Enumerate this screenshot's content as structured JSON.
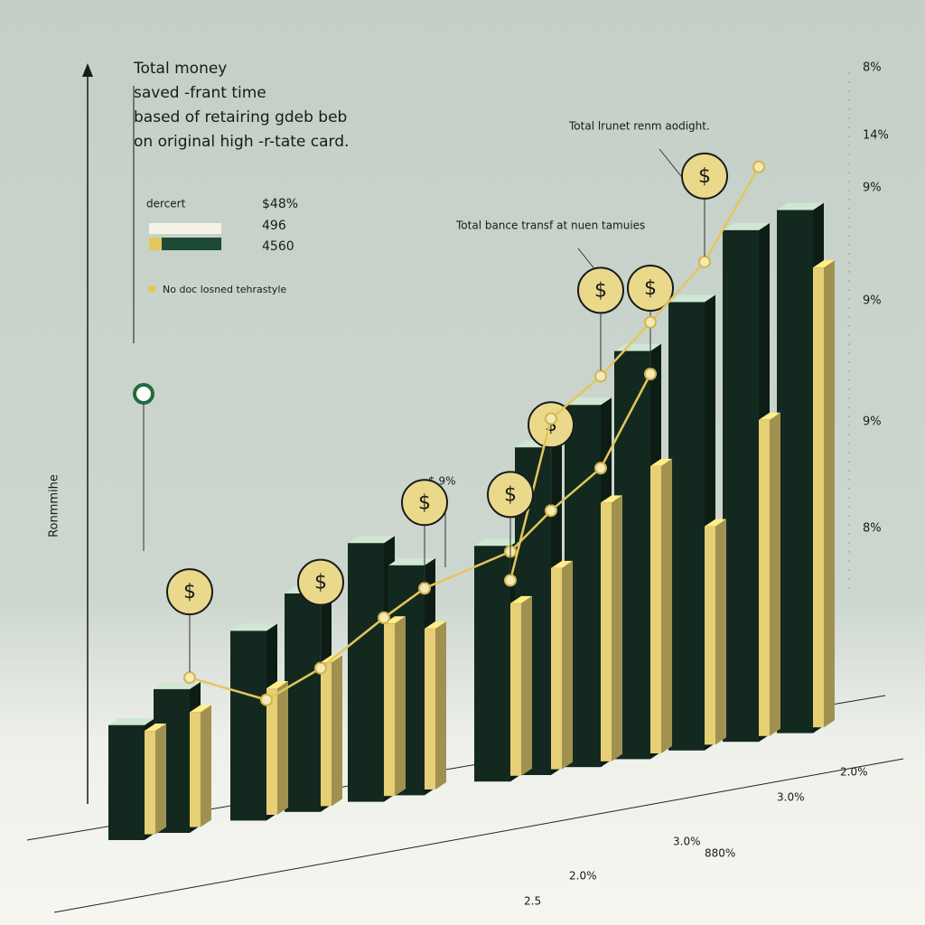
{
  "chart_data": {
    "type": "bar",
    "title_lines": [
      "Total money",
      "saved -frant time",
      "based of retairing gdeb beb",
      "on original high -r-tate card."
    ],
    "ylabel": "Ronmmihe",
    "legend": {
      "title": "dercert",
      "items": [
        "$48%",
        "496",
        "4560"
      ],
      "note": "No doc losned tehrastyle"
    },
    "annotations": [
      "Total lrunet renm aodight.",
      "Total bance transf at nuen tamuies",
      "$.9%"
    ],
    "right_labels": [
      "8%",
      "9%",
      "9%",
      "9%",
      "8%",
      "14%"
    ],
    "bottom_labels": [
      "2.5",
      "2.0%",
      "3.0%",
      "880%",
      "3.0%",
      "2.0%"
    ],
    "coin_symbol": "$",
    "categories": [
      null,
      null,
      null,
      null,
      null,
      null,
      null,
      null,
      null,
      null,
      null,
      null,
      null
    ],
    "ylim": [
      0,
      110
    ],
    "series": [
      {
        "color": "#13291f",
        "values": [
          20,
          25,
          33,
          38,
          45,
          40,
          41,
          57,
          63,
          71,
          78,
          89,
          91
        ]
      },
      {
        "color": "#e6cf74",
        "values": [
          18,
          20,
          22,
          25,
          30,
          28,
          30,
          35,
          45,
          50,
          38,
          55,
          80
        ]
      },
      {
        "type": "line",
        "color": "#e3c65e",
        "values": [
          null,
          26,
          20,
          24,
          31,
          35,
          39,
          45,
          51,
          66,
          null,
          null,
          null
        ]
      },
      {
        "type": "line",
        "color": "#e3c65e",
        "values": [
          null,
          null,
          null,
          null,
          null,
          null,
          34,
          61,
          67,
          75,
          84,
          99,
          null
        ]
      }
    ]
  }
}
